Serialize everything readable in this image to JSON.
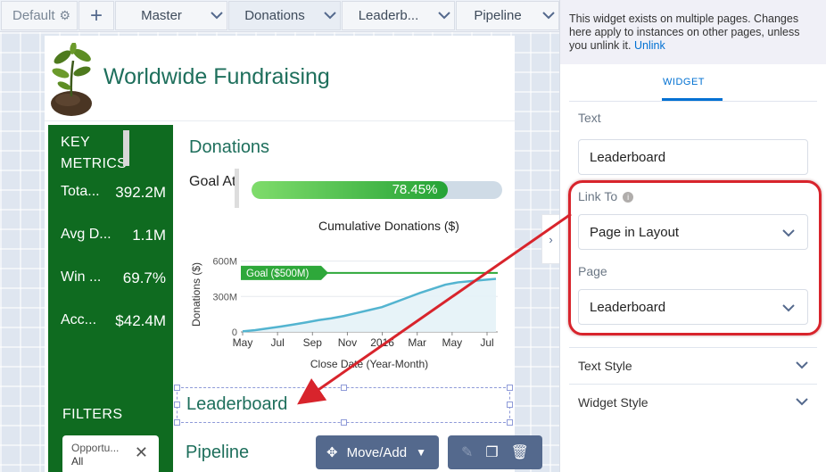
{
  "tabs": {
    "default_label": "Default",
    "add_label": "+",
    "items": [
      {
        "label": "Master"
      },
      {
        "label": "Donations"
      },
      {
        "label": "Leaderb..."
      },
      {
        "label": "Pipeline"
      }
    ]
  },
  "dashboard": {
    "title": "Worldwide Fundraising",
    "key_metrics": {
      "title": "KEY METRICS",
      "metrics": [
        {
          "label": "Tota...",
          "value": "392.2M"
        },
        {
          "label": "Avg D...",
          "value": "1.1M"
        },
        {
          "label": "Win ...",
          "value": "69.7%"
        },
        {
          "label": "Acc...",
          "value": "$42.4M"
        }
      ]
    },
    "filters": {
      "title": "FILTERS",
      "filter_name": "Opportu...",
      "filter_value": "All"
    },
    "donations": {
      "title": "Donations",
      "goal_label": "Goal Attainment",
      "goal_value_text": "78.45%",
      "goal_fraction": 0.7845
    },
    "leaderboard_text": "Leaderboard",
    "pipeline_title": "Pipeline"
  },
  "chart_data": {
    "type": "area",
    "title": "Cumulative Donations ($)",
    "xlabel": "Close Date (Year-Month)",
    "ylabel": "Donations ($)",
    "x_ticks": [
      "May",
      "Jul",
      "Sep",
      "Nov",
      "2016",
      "Mar",
      "May",
      "Jul"
    ],
    "y_ticks": [
      "0",
      "300M",
      "600M"
    ],
    "ylim": [
      0,
      650
    ],
    "goal_line": {
      "label": "Goal ($500M)",
      "value": 500
    },
    "series": [
      {
        "values": [
          5,
          15,
          30,
          45,
          62,
          80,
          100,
          115,
          135,
          160,
          185,
          210,
          250,
          290,
          330,
          365,
          400,
          420,
          430,
          440,
          450
        ]
      }
    ],
    "grid": true
  },
  "toolbar": {
    "move_add_label": "Move/Add"
  },
  "panel": {
    "notice_text": "This widget exists on multiple pages. Changes here apply to instances on other pages, unless you unlink it.",
    "unlink_label": "Unlink",
    "tab_label": "WIDGET",
    "text_label": "Text",
    "text_value": "Leaderboard",
    "link_to_label": "Link To",
    "link_to_value": "Page in Layout",
    "page_label": "Page",
    "page_value": "Leaderboard",
    "text_style_label": "Text Style",
    "widget_style_label": "Widget Style"
  },
  "colors": {
    "accent": "#0070d2",
    "sidebar_green": "#0f6b20",
    "title_green": "#1e6f5c",
    "goal_green": "#25a336",
    "highlight_red": "#d8242c"
  }
}
